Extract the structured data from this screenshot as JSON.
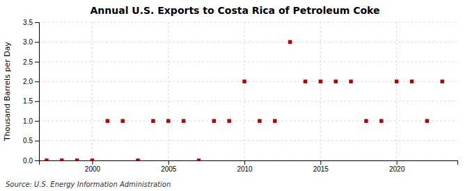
{
  "chart_data": {
    "type": "scatter",
    "title": "Annual U.S. Exports to Costa Rica of Petroleum Coke",
    "ylabel": "Thousand Barrels per Day",
    "source": "Source: U.S. Energy Information Administration",
    "x": [
      1997,
      1998,
      1999,
      2000,
      2001,
      2002,
      2003,
      2004,
      2005,
      2006,
      2007,
      2008,
      2009,
      2010,
      2011,
      2012,
      2013,
      2014,
      2015,
      2016,
      2017,
      2018,
      2019,
      2020,
      2021,
      2022,
      2023
    ],
    "values": [
      0.0,
      0.0,
      0.0,
      0.0,
      1.0,
      1.0,
      0.0,
      1.0,
      1.0,
      1.0,
      0.0,
      1.0,
      1.0,
      2.0,
      1.0,
      1.0,
      3.0,
      2.0,
      2.0,
      2.0,
      2.0,
      1.0,
      1.0,
      2.0,
      2.0,
      1.0,
      2.0
    ],
    "color": "#bb0000",
    "marker": "square",
    "xlim": [
      1996.5,
      2024
    ],
    "xticks": [
      2000,
      2005,
      2010,
      2015,
      2020
    ],
    "ylim": [
      0,
      3.5
    ],
    "yticks": [
      {
        "value": 0.0,
        "label": "0.0"
      },
      {
        "value": 0.5,
        "label": "0.5"
      },
      {
        "value": 1.0,
        "label": "1.0"
      },
      {
        "value": 1.5,
        "label": "1.5"
      },
      {
        "value": 2.0,
        "label": "2.0"
      },
      {
        "value": 2.5,
        "label": "2.5"
      },
      {
        "value": 3.0,
        "label": "3.0"
      },
      {
        "value": 3.5,
        "label": "3.5"
      }
    ],
    "grid": true
  }
}
